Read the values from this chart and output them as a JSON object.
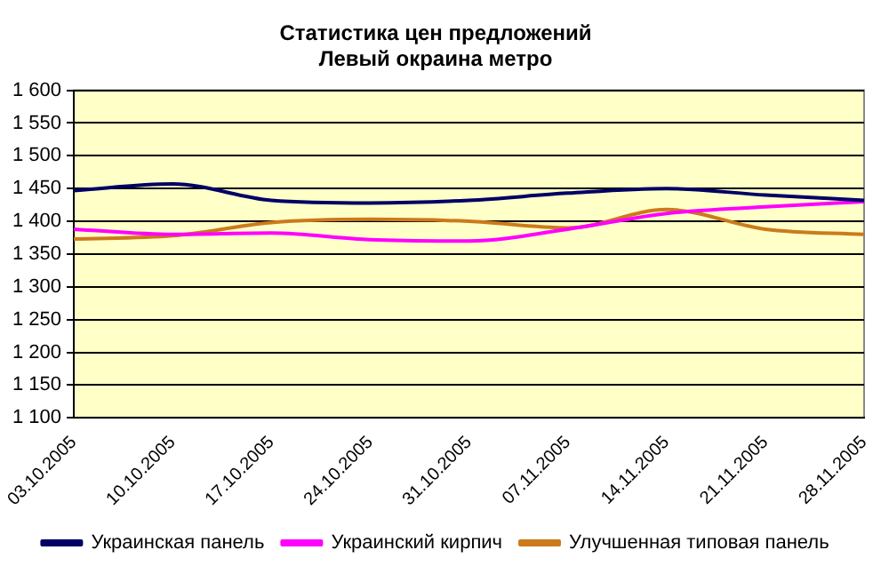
{
  "chart_data": {
    "type": "line",
    "title": [
      "Статистика цен предложений",
      "Левый окраина метро"
    ],
    "categories": [
      "03.10.2005",
      "10.10.2005",
      "17.10.2005",
      "24.10.2005",
      "31.10.2005",
      "07.11.2005",
      "14.11.2005",
      "21.11.2005",
      "28.11.2005"
    ],
    "series": [
      {
        "name": "Украинская панель",
        "color": "#000066",
        "values": [
          1447,
          1457,
          1432,
          1428,
          1432,
          1443,
          1450,
          1440,
          1432
        ]
      },
      {
        "name": "Украинский кирпич",
        "color": "#ff00ff",
        "values": [
          1388,
          1380,
          1382,
          1372,
          1370,
          1388,
          1412,
          1422,
          1430
        ]
      },
      {
        "name": "Улучшенная типовая панель",
        "color": "#cc7a1a",
        "values": [
          1373,
          1378,
          1398,
          1403,
          1400,
          1390,
          1418,
          1388,
          1380
        ]
      }
    ],
    "ylim": [
      1100,
      1600
    ],
    "yticks": [
      1100,
      1150,
      1200,
      1250,
      1300,
      1350,
      1400,
      1450,
      1500,
      1550,
      1600
    ],
    "grid": "y",
    "legend": "bottom",
    "marker": "none",
    "line_style": "solid"
  }
}
